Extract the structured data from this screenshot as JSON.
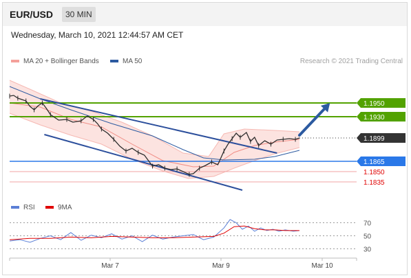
{
  "header": {
    "symbol": "EUR/USD",
    "timeframe": "30 MIN"
  },
  "date_line": "Wednesday, March 10, 2021 12:44:57 AM CET",
  "legend_main": [
    {
      "label": "MA 20 + Bollinger Bands",
      "color": "#f4a09a"
    },
    {
      "label": "MA 50",
      "color": "#2c5aa0"
    }
  ],
  "credit": "Research © 2021 Trading Central",
  "legend_rsi": [
    {
      "label": "RSI",
      "color": "#5b7fd6"
    },
    {
      "label": "9MA",
      "color": "#e00000"
    }
  ],
  "colors": {
    "resistance": "#52a200",
    "support": "#2a78e8",
    "support_text": "#e00000",
    "current": "#333333",
    "channel": "#2c4f9c"
  },
  "chart_data": [
    {
      "type": "line",
      "title": "",
      "ylim": [
        1.1815,
        1.2
      ],
      "x_labels": [
        "Mar 7",
        "Mar 9",
        "Mar 10"
      ],
      "price_path": [
        [
          0,
          1.196
        ],
        [
          4,
          1.1961
        ],
        [
          8,
          1.1957
        ],
        [
          12,
          1.1955
        ],
        [
          16,
          1.1953
        ],
        [
          20,
          1.1945
        ],
        [
          24,
          1.194
        ],
        [
          28,
          1.1946
        ],
        [
          32,
          1.195
        ],
        [
          36,
          1.1942
        ],
        [
          40,
          1.1933
        ],
        [
          48,
          1.1925
        ],
        [
          56,
          1.1926
        ],
        [
          62,
          1.1922
        ],
        [
          70,
          1.1924
        ],
        [
          76,
          1.1931
        ],
        [
          82,
          1.1926
        ],
        [
          86,
          1.192
        ],
        [
          90,
          1.1912
        ],
        [
          96,
          1.1906
        ],
        [
          102,
          1.1897
        ],
        [
          108,
          1.1887
        ],
        [
          114,
          1.188
        ],
        [
          120,
          1.1884
        ],
        [
          126,
          1.1878
        ],
        [
          132,
          1.1874
        ],
        [
          140,
          1.1858
        ],
        [
          146,
          1.186
        ],
        [
          152,
          1.1855
        ],
        [
          158,
          1.1853
        ],
        [
          164,
          1.1854
        ],
        [
          170,
          1.185
        ],
        [
          176,
          1.1846
        ],
        [
          180,
          1.1847
        ],
        [
          186,
          1.1855
        ],
        [
          192,
          1.1859
        ],
        [
          198,
          1.1864
        ],
        [
          204,
          1.186
        ],
        [
          210,
          1.188
        ],
        [
          214,
          1.189
        ],
        [
          218,
          1.1898
        ],
        [
          222,
          1.1906
        ],
        [
          226,
          1.19
        ],
        [
          232,
          1.1907
        ],
        [
          236,
          1.1894
        ],
        [
          240,
          1.19
        ],
        [
          244,
          1.1888
        ],
        [
          250,
          1.1895
        ],
        [
          256,
          1.189
        ],
        [
          262,
          1.1896
        ],
        [
          268,
          1.1897
        ],
        [
          274,
          1.1898
        ],
        [
          280,
          1.1897
        ],
        [
          284,
          1.1899
        ]
      ],
      "ma20_path": [
        [
          0,
          1.195
        ],
        [
          30,
          1.1944
        ],
        [
          60,
          1.1926
        ],
        [
          90,
          1.1915
        ],
        [
          120,
          1.189
        ],
        [
          150,
          1.1866
        ],
        [
          180,
          1.1857
        ],
        [
          200,
          1.1858
        ],
        [
          220,
          1.1878
        ],
        [
          240,
          1.1888
        ],
        [
          260,
          1.1893
        ],
        [
          284,
          1.1897
        ]
      ],
      "upper_band_path": [
        [
          0,
          1.1983
        ],
        [
          20,
          1.197
        ],
        [
          50,
          1.195
        ],
        [
          80,
          1.1938
        ],
        [
          110,
          1.1922
        ],
        [
          140,
          1.1902
        ],
        [
          170,
          1.1877
        ],
        [
          195,
          1.1872
        ],
        [
          210,
          1.1905
        ],
        [
          230,
          1.1912
        ],
        [
          260,
          1.191
        ],
        [
          284,
          1.1908
        ]
      ],
      "lower_band_path": [
        [
          0,
          1.1935
        ],
        [
          30,
          1.1918
        ],
        [
          60,
          1.1903
        ],
        [
          90,
          1.189
        ],
        [
          120,
          1.1868
        ],
        [
          150,
          1.1851
        ],
        [
          175,
          1.184
        ],
        [
          200,
          1.1843
        ],
        [
          220,
          1.1855
        ],
        [
          240,
          1.1866
        ],
        [
          260,
          1.1876
        ],
        [
          284,
          1.1885
        ]
      ],
      "ma50_path": [
        [
          0,
          1.1974
        ],
        [
          30,
          1.1956
        ],
        [
          60,
          1.194
        ],
        [
          100,
          1.192
        ],
        [
          140,
          1.1902
        ],
        [
          170,
          1.1882
        ],
        [
          190,
          1.187
        ],
        [
          210,
          1.1867
        ],
        [
          240,
          1.1868
        ],
        [
          260,
          1.1872
        ],
        [
          284,
          1.1881
        ]
      ],
      "channel": [
        {
          "from": [
            30,
            1.1956
          ],
          "to": [
            262,
            1.1877
          ]
        },
        {
          "from": [
            34,
            1.1904
          ],
          "to": [
            228,
            1.1823
          ]
        }
      ],
      "levels": [
        {
          "label": "1.1950",
          "value": 1.195,
          "type": "resistance"
        },
        {
          "label": "1.1930",
          "value": 1.193,
          "type": "resistance"
        },
        {
          "label": "1.1899",
          "value": 1.1899,
          "type": "current"
        },
        {
          "label": "1.1865",
          "value": 1.1865,
          "type": "support"
        },
        {
          "label": "1.1850",
          "value": 1.185,
          "type": "support_text"
        },
        {
          "label": "1.1835",
          "value": 1.1835,
          "type": "support_text"
        }
      ],
      "arrow": {
        "from": [
          284,
          1.1903
        ],
        "to": [
          312,
          1.1947
        ]
      }
    },
    {
      "type": "line",
      "title": "",
      "ylim": [
        20,
        80
      ],
      "y_ticks": [
        70,
        50,
        30
      ],
      "series": [
        {
          "name": "RSI",
          "values": [
            [
              0,
              42
            ],
            [
              10,
              44
            ],
            [
              20,
              40
            ],
            [
              30,
              46
            ],
            [
              40,
              50
            ],
            [
              50,
              44
            ],
            [
              60,
              55
            ],
            [
              70,
              43
            ],
            [
              80,
              51
            ],
            [
              90,
              47
            ],
            [
              100,
              53
            ],
            [
              110,
              45
            ],
            [
              120,
              50
            ],
            [
              130,
              41
            ],
            [
              140,
              51
            ],
            [
              150,
              45
            ],
            [
              160,
              48
            ],
            [
              170,
              50
            ],
            [
              180,
              52
            ],
            [
              190,
              44
            ],
            [
              200,
              48
            ],
            [
              210,
              62
            ],
            [
              216,
              75
            ],
            [
              222,
              70
            ],
            [
              228,
              60
            ],
            [
              234,
              65
            ],
            [
              240,
              57
            ],
            [
              246,
              62
            ],
            [
              252,
              58
            ],
            [
              258,
              60
            ],
            [
              264,
              57
            ],
            [
              270,
              59
            ],
            [
              278,
              57
            ],
            [
              284,
              58
            ]
          ]
        },
        {
          "name": "9MA",
          "values": [
            [
              0,
              44
            ],
            [
              20,
              46
            ],
            [
              40,
              46
            ],
            [
              60,
              48
            ],
            [
              80,
              47
            ],
            [
              100,
              49
            ],
            [
              120,
              48
            ],
            [
              140,
              47
            ],
            [
              160,
              47
            ],
            [
              180,
              48
            ],
            [
              200,
              49
            ],
            [
              210,
              54
            ],
            [
              220,
              64
            ],
            [
              230,
              65
            ],
            [
              240,
              61
            ],
            [
              250,
              59
            ],
            [
              260,
              59
            ],
            [
              270,
              58
            ],
            [
              284,
              58
            ]
          ]
        }
      ]
    }
  ]
}
